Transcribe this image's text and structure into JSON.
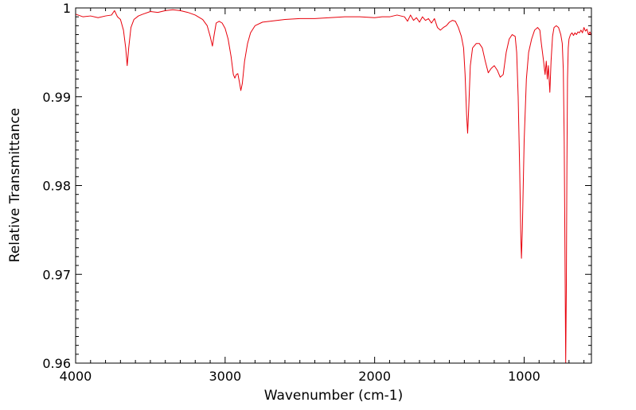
{
  "chart_data": {
    "type": "line",
    "title": "",
    "xlabel": "Wavenumber (cm-1)",
    "ylabel": "Relative Transmittance",
    "xlim": [
      4000,
      550
    ],
    "ylim": [
      0.96,
      1.0
    ],
    "x_reversed": true,
    "grid": false,
    "legend": "none",
    "x_ticks": [
      {
        "value": 4000,
        "label": "4000"
      },
      {
        "value": 3000,
        "label": "3000"
      },
      {
        "value": 2000,
        "label": "2000"
      },
      {
        "value": 1000,
        "label": "1000"
      }
    ],
    "y_ticks": [
      {
        "value": 0.96,
        "label": "0.96"
      },
      {
        "value": 0.97,
        "label": "0.97"
      },
      {
        "value": 0.98,
        "label": "0.98"
      },
      {
        "value": 0.99,
        "label": "0.99"
      },
      {
        "value": 1.0,
        "label": "1"
      }
    ],
    "series": [
      {
        "color": "#e8000b",
        "points": [
          [
            4000,
            0.9993
          ],
          [
            3950,
            0.999
          ],
          [
            3900,
            0.9991
          ],
          [
            3850,
            0.9989
          ],
          [
            3800,
            0.9991
          ],
          [
            3760,
            0.9992
          ],
          [
            3740,
            0.9997
          ],
          [
            3720,
            0.999
          ],
          [
            3700,
            0.9987
          ],
          [
            3680,
            0.9975
          ],
          [
            3665,
            0.9955
          ],
          [
            3655,
            0.9935
          ],
          [
            3645,
            0.9955
          ],
          [
            3630,
            0.9978
          ],
          [
            3610,
            0.9987
          ],
          [
            3580,
            0.9991
          ],
          [
            3550,
            0.9993
          ],
          [
            3500,
            0.9996
          ],
          [
            3450,
            0.9995
          ],
          [
            3400,
            0.9997
          ],
          [
            3350,
            0.9998
          ],
          [
            3300,
            0.9997
          ],
          [
            3250,
            0.9995
          ],
          [
            3200,
            0.9992
          ],
          [
            3150,
            0.9987
          ],
          [
            3120,
            0.998
          ],
          [
            3100,
            0.9968
          ],
          [
            3085,
            0.9957
          ],
          [
            3075,
            0.9968
          ],
          [
            3060,
            0.9983
          ],
          [
            3040,
            0.9985
          ],
          [
            3020,
            0.9983
          ],
          [
            3000,
            0.9977
          ],
          [
            2980,
            0.9965
          ],
          [
            2960,
            0.9945
          ],
          [
            2945,
            0.9925
          ],
          [
            2935,
            0.9921
          ],
          [
            2925,
            0.9925
          ],
          [
            2915,
            0.9926
          ],
          [
            2905,
            0.9917
          ],
          [
            2895,
            0.9907
          ],
          [
            2885,
            0.9915
          ],
          [
            2870,
            0.994
          ],
          [
            2850,
            0.996
          ],
          [
            2830,
            0.9972
          ],
          [
            2800,
            0.998
          ],
          [
            2750,
            0.9984
          ],
          [
            2700,
            0.9985
          ],
          [
            2600,
            0.9987
          ],
          [
            2500,
            0.9988
          ],
          [
            2400,
            0.9988
          ],
          [
            2300,
            0.9989
          ],
          [
            2200,
            0.999
          ],
          [
            2100,
            0.999
          ],
          [
            2000,
            0.9989
          ],
          [
            1950,
            0.999
          ],
          [
            1900,
            0.999
          ],
          [
            1850,
            0.9992
          ],
          [
            1800,
            0.999
          ],
          [
            1780,
            0.9985
          ],
          [
            1760,
            0.9992
          ],
          [
            1740,
            0.9986
          ],
          [
            1720,
            0.9989
          ],
          [
            1700,
            0.9984
          ],
          [
            1680,
            0.999
          ],
          [
            1660,
            0.9986
          ],
          [
            1640,
            0.9988
          ],
          [
            1620,
            0.9983
          ],
          [
            1600,
            0.9988
          ],
          [
            1580,
            0.9978
          ],
          [
            1560,
            0.9975
          ],
          [
            1540,
            0.9978
          ],
          [
            1520,
            0.998
          ],
          [
            1500,
            0.9984
          ],
          [
            1480,
            0.9986
          ],
          [
            1460,
            0.9985
          ],
          [
            1440,
            0.9978
          ],
          [
            1420,
            0.9968
          ],
          [
            1405,
            0.9955
          ],
          [
            1395,
            0.9925
          ],
          [
            1385,
            0.988
          ],
          [
            1378,
            0.9859
          ],
          [
            1370,
            0.989
          ],
          [
            1360,
            0.9935
          ],
          [
            1345,
            0.9955
          ],
          [
            1320,
            0.996
          ],
          [
            1300,
            0.996
          ],
          [
            1280,
            0.9955
          ],
          [
            1260,
            0.994
          ],
          [
            1240,
            0.9927
          ],
          [
            1220,
            0.9932
          ],
          [
            1200,
            0.9935
          ],
          [
            1180,
            0.993
          ],
          [
            1160,
            0.9922
          ],
          [
            1140,
            0.9925
          ],
          [
            1120,
            0.995
          ],
          [
            1100,
            0.9965
          ],
          [
            1080,
            0.997
          ],
          [
            1060,
            0.9968
          ],
          [
            1050,
            0.995
          ],
          [
            1040,
            0.99
          ],
          [
            1030,
            0.982
          ],
          [
            1022,
            0.974
          ],
          [
            1018,
            0.9718
          ],
          [
            1012,
            0.975
          ],
          [
            1000,
            0.985
          ],
          [
            985,
            0.992
          ],
          [
            970,
            0.995
          ],
          [
            950,
            0.9965
          ],
          [
            930,
            0.9975
          ],
          [
            910,
            0.9978
          ],
          [
            895,
            0.9975
          ],
          [
            885,
            0.996
          ],
          [
            870,
            0.994
          ],
          [
            860,
            0.9925
          ],
          [
            852,
            0.994
          ],
          [
            845,
            0.992
          ],
          [
            838,
            0.9935
          ],
          [
            828,
            0.9905
          ],
          [
            820,
            0.994
          ],
          [
            810,
            0.9968
          ],
          [
            800,
            0.9978
          ],
          [
            785,
            0.998
          ],
          [
            770,
            0.9978
          ],
          [
            755,
            0.997
          ],
          [
            745,
            0.996
          ],
          [
            738,
            0.993
          ],
          [
            732,
            0.985
          ],
          [
            726,
            0.97
          ],
          [
            722,
            0.96
          ],
          [
            718,
            0.968
          ],
          [
            714,
            0.982
          ],
          [
            710,
            0.992
          ],
          [
            705,
            0.9955
          ],
          [
            700,
            0.9965
          ],
          [
            690,
            0.997
          ],
          [
            680,
            0.9972
          ],
          [
            670,
            0.9969
          ],
          [
            660,
            0.9972
          ],
          [
            650,
            0.997
          ],
          [
            640,
            0.9973
          ],
          [
            630,
            0.9972
          ],
          [
            620,
            0.9975
          ],
          [
            610,
            0.9972
          ],
          [
            600,
            0.9978
          ],
          [
            590,
            0.9974
          ],
          [
            580,
            0.9976
          ],
          [
            570,
            0.997
          ],
          [
            560,
            0.9973
          ],
          [
            550,
            0.9969
          ]
        ]
      }
    ]
  }
}
